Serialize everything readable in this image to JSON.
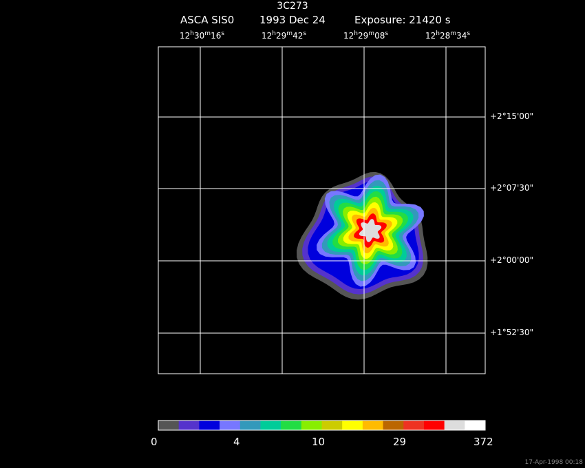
{
  "header": {
    "title": "3C273",
    "instrument": "ASCA SIS0",
    "date": "1993 Dec 24",
    "exposure": "Exposure: 21420 s"
  },
  "timestamp": "17-Apr-1998 00:18",
  "chart_data": {
    "type": "heatmap",
    "title": "3C273",
    "grid": true,
    "ra_ticks": [
      {
        "h": "12",
        "m": "30",
        "s": "16"
      },
      {
        "h": "12",
        "m": "29",
        "s": "42"
      },
      {
        "h": "12",
        "m": "29",
        "s": "08"
      },
      {
        "h": "12",
        "m": "28",
        "s": "34"
      }
    ],
    "dec_ticks": [
      "+2°15'00\"",
      "+2°07'30\"",
      "+2°00'00\"",
      "+1°52'30\""
    ],
    "colorbar": {
      "tick_labels": [
        "0",
        "4",
        "10",
        "29",
        "372"
      ],
      "colors": [
        "#555555",
        "#5533cc",
        "#0000dd",
        "#7777ff",
        "#3399bb",
        "#00cc99",
        "#22dd44",
        "#88ee00",
        "#cccc00",
        "#ffff00",
        "#ffbb00",
        "#bb6600",
        "#ee3322",
        "#ff0000",
        "#dddddd",
        "#ffffff"
      ]
    },
    "source": {
      "levels": [
        "#555555",
        "#5533cc",
        "#0000dd",
        "#7777ff",
        "#3399bb",
        "#00cc99",
        "#22dd44",
        "#88ee00",
        "#ffff00",
        "#ffbb00",
        "#ff0000",
        "#dddddd"
      ]
    }
  }
}
